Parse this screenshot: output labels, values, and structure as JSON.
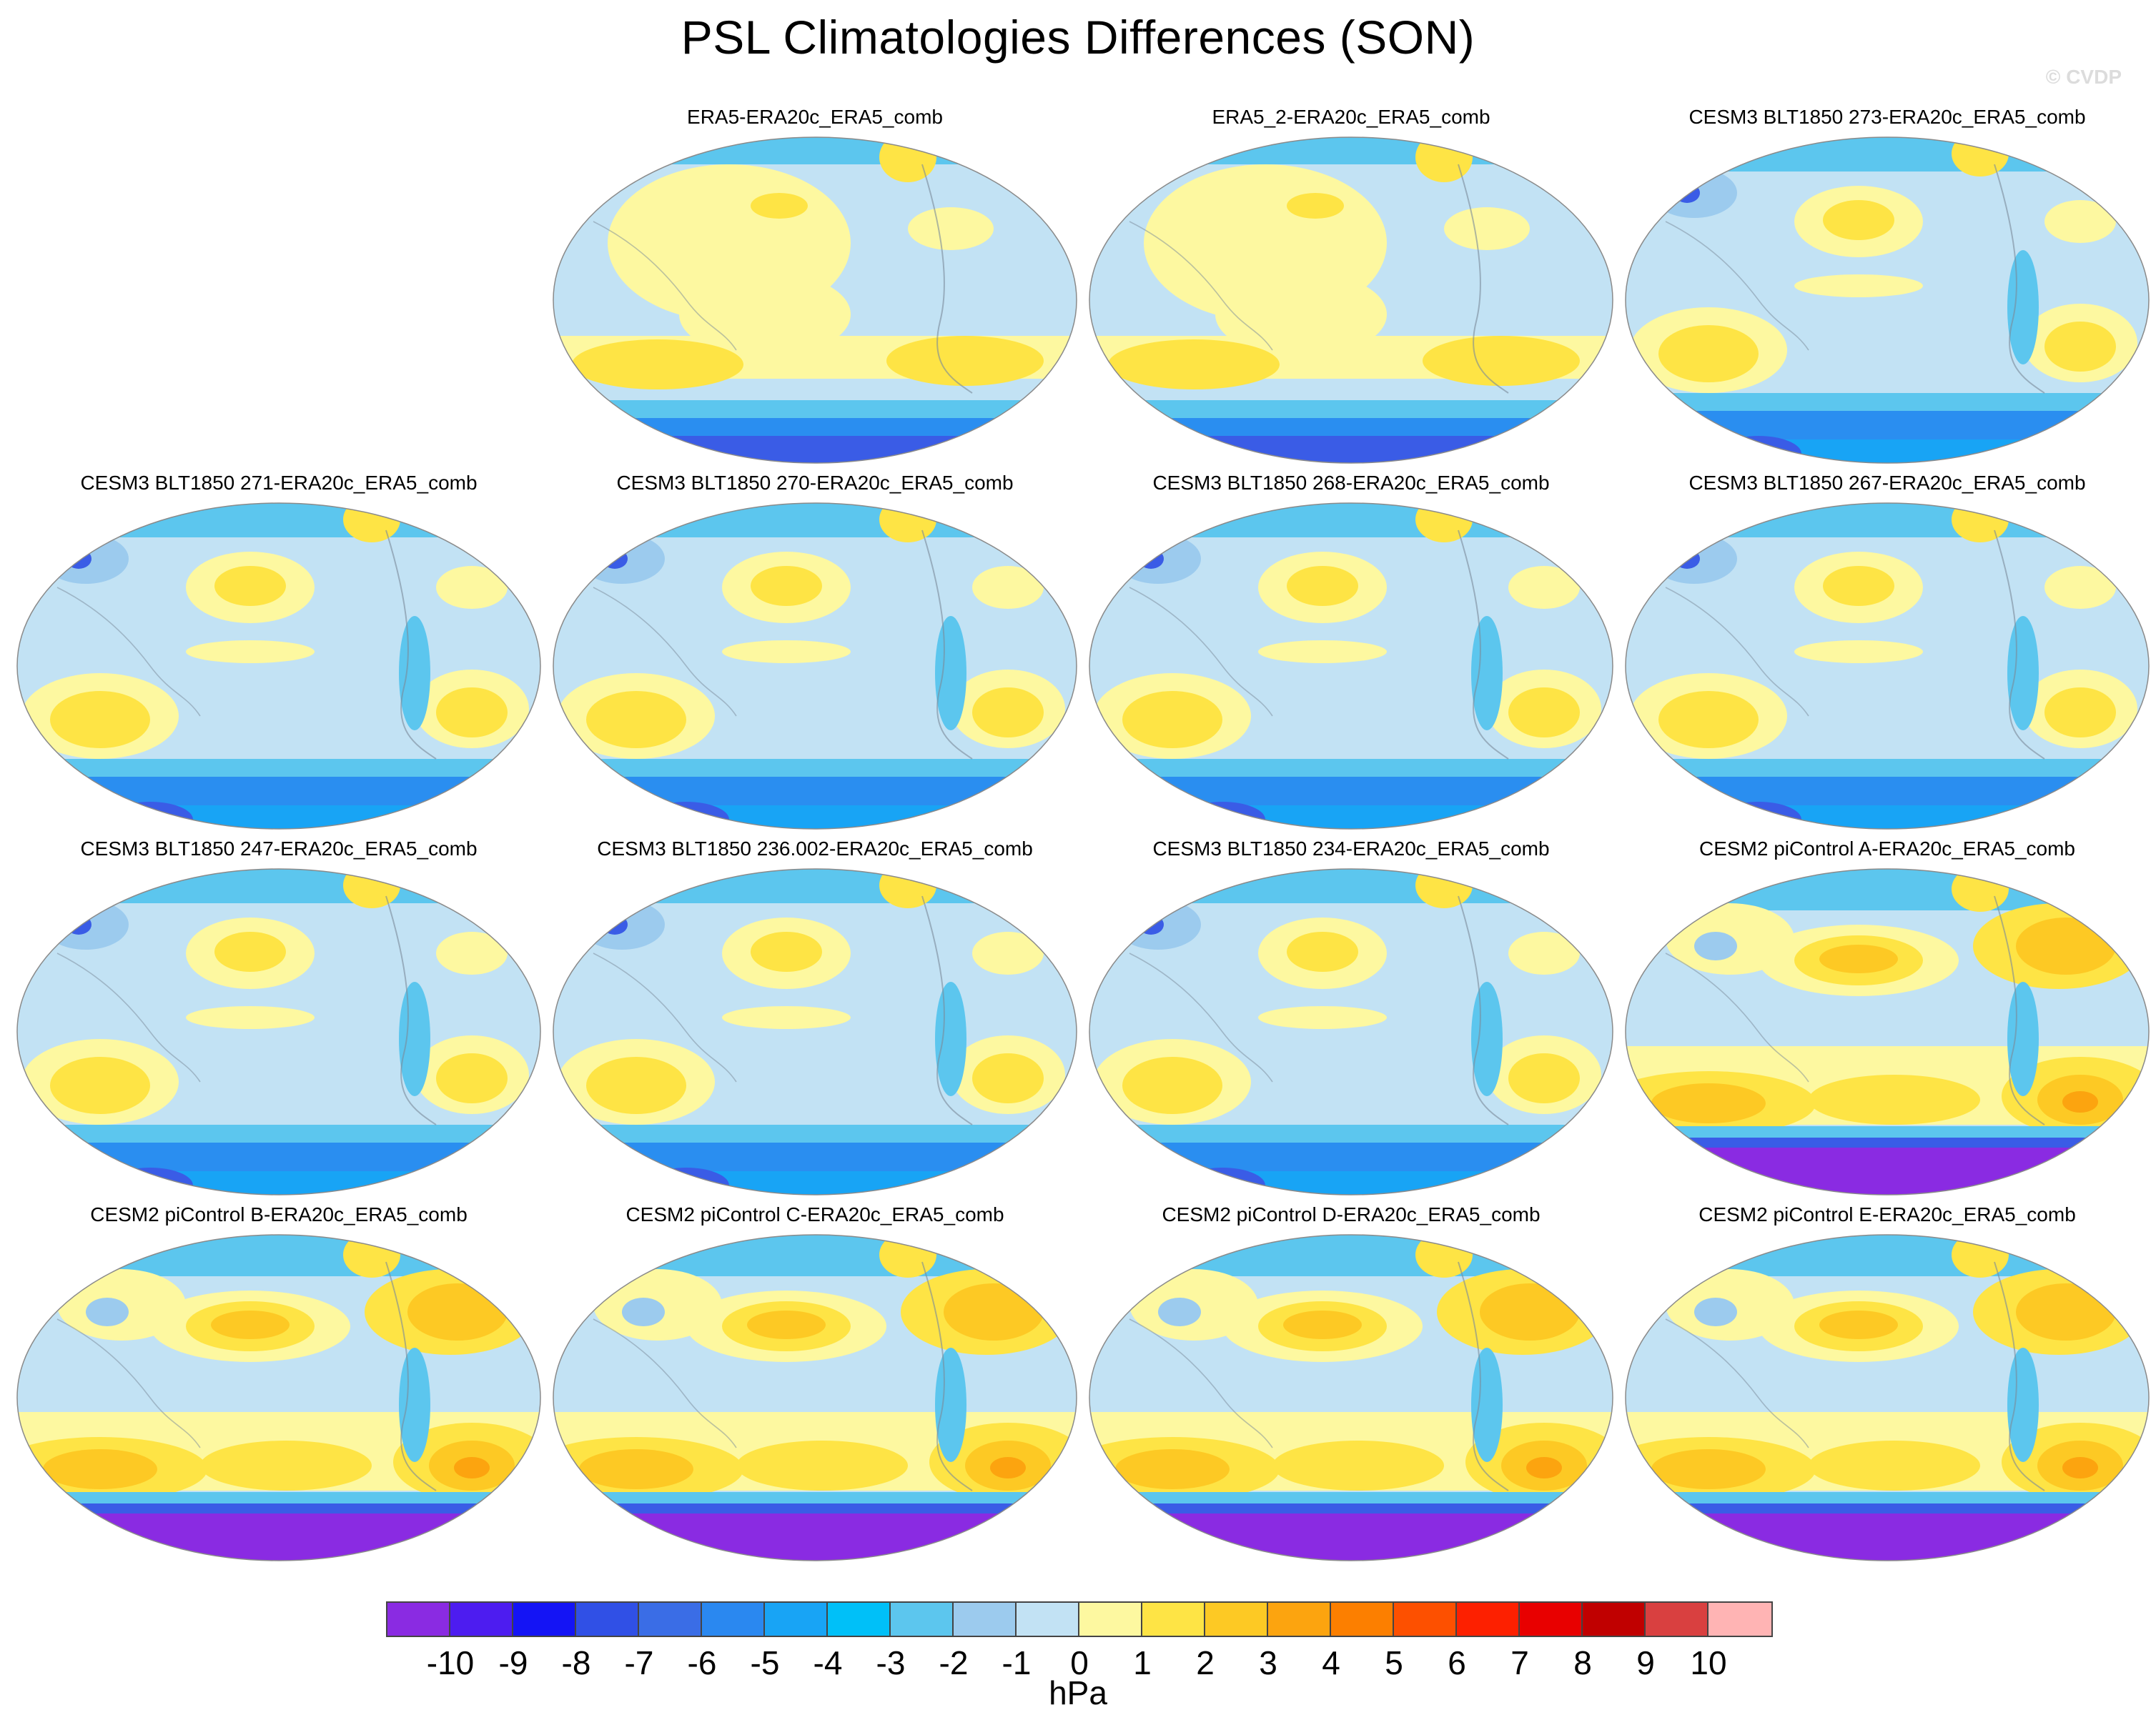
{
  "figure": {
    "title": "PSL Climatologies Differences (SON)",
    "credit": "© CVDP"
  },
  "panels": [
    {
      "label": "ERA5-ERA20c_ERA5_comb",
      "variant": "era5"
    },
    {
      "label": "ERA5_2-ERA20c_ERA5_comb",
      "variant": "era5"
    },
    {
      "label": "CESM3 BLT1850 273-ERA20c_ERA5_comb",
      "variant": "cesm3"
    },
    {
      "label": "CESM3 BLT1850 271-ERA20c_ERA5_comb",
      "variant": "cesm3"
    },
    {
      "label": "CESM3 BLT1850 270-ERA20c_ERA5_comb",
      "variant": "cesm3"
    },
    {
      "label": "CESM3 BLT1850 268-ERA20c_ERA5_comb",
      "variant": "cesm3"
    },
    {
      "label": "CESM3 BLT1850 267-ERA20c_ERA5_comb",
      "variant": "cesm3"
    },
    {
      "label": "CESM3 BLT1850 247-ERA20c_ERA5_comb",
      "variant": "cesm3"
    },
    {
      "label": "CESM3 BLT1850 236.002-ERA20c_ERA5_comb",
      "variant": "cesm3"
    },
    {
      "label": "CESM3 BLT1850 234-ERA20c_ERA5_comb",
      "variant": "cesm3"
    },
    {
      "label": "CESM2 piControl A-ERA20c_ERA5_comb",
      "variant": "cesm2"
    },
    {
      "label": "CESM2 piControl B-ERA20c_ERA5_comb",
      "variant": "cesm2"
    },
    {
      "label": "CESM2 piControl C-ERA20c_ERA5_comb",
      "variant": "cesm2"
    },
    {
      "label": "CESM2 piControl D-ERA20c_ERA5_comb",
      "variant": "cesm2"
    },
    {
      "label": "CESM2 piControl E-ERA20c_ERA5_comb",
      "variant": "cesm2"
    }
  ],
  "colorbar": {
    "colors": [
      "#8a2be2",
      "#4d1cf0",
      "#1414f5",
      "#3050e6",
      "#3a6de6",
      "#2a88f0",
      "#18a4f5",
      "#00c0f8",
      "#5cc6ee",
      "#9ccbee",
      "#c2e2f4",
      "#fdf8a0",
      "#fee445",
      "#fdc924",
      "#fca40f",
      "#fc7f00",
      "#fd5000",
      "#fd2000",
      "#e80000",
      "#c00000",
      "#d94040",
      "#ffb4b4"
    ],
    "labels": [
      "-10",
      "-9",
      "-8",
      "-7",
      "-6",
      "-5",
      "-4",
      "-3",
      "-2",
      "-1",
      "0",
      "1",
      "2",
      "3",
      "4",
      "5",
      "6",
      "7",
      "8",
      "9",
      "10"
    ],
    "units": "hPa"
  }
}
